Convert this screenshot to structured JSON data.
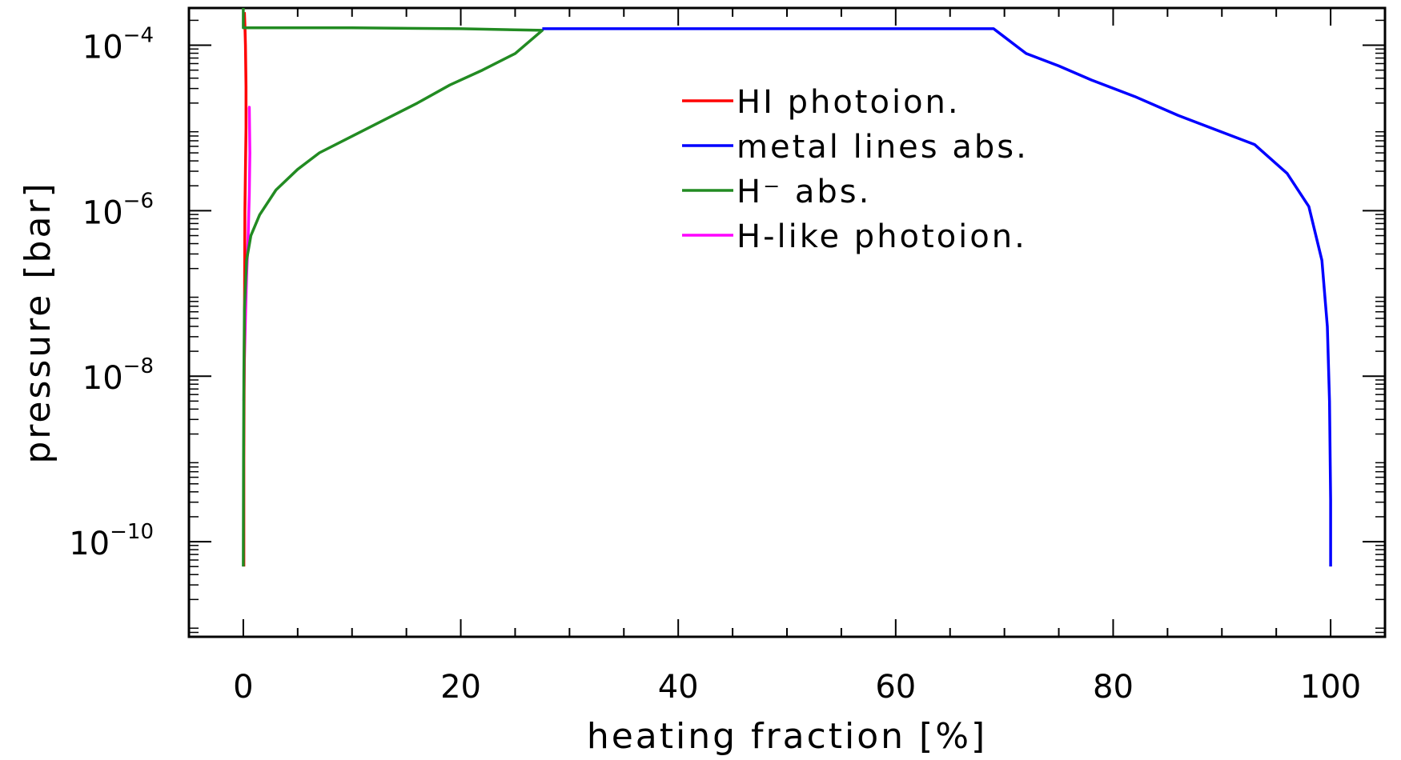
{
  "chart_data": {
    "type": "line",
    "title": "",
    "xlabel": "heating fraction [%]",
    "ylabel": "pressure [bar]",
    "xlim": [
      -5,
      105
    ],
    "ylim_log10": [
      -11.15,
      -3.55
    ],
    "y_scale": "log",
    "x_ticks": [
      {
        "value": 0,
        "label": "0"
      },
      {
        "value": 20,
        "label": "20"
      },
      {
        "value": 40,
        "label": "40"
      },
      {
        "value": 60,
        "label": "60"
      },
      {
        "value": 80,
        "label": "80"
      },
      {
        "value": 100,
        "label": "100"
      }
    ],
    "y_ticks": [
      {
        "exp": -10,
        "base": "10",
        "sup": "−10"
      },
      {
        "exp": -8,
        "base": "10",
        "sup": "−8"
      },
      {
        "exp": -6,
        "base": "10",
        "sup": "−6"
      },
      {
        "exp": -4,
        "base": "10",
        "sup": "−4"
      }
    ],
    "legend_position": "top-center",
    "series": [
      {
        "name": "HI photoion.",
        "color": "#ff0000",
        "points": [
          [
            0.05,
            -10.3
          ],
          [
            0.05,
            -9.0
          ],
          [
            0.08,
            -8.0
          ],
          [
            0.12,
            -7.0
          ],
          [
            0.15,
            -6.0
          ],
          [
            0.2,
            -5.5
          ],
          [
            0.25,
            -5.0
          ],
          [
            0.25,
            -4.5
          ],
          [
            0.2,
            -4.0
          ],
          [
            0.15,
            -3.75
          ],
          [
            0.1,
            -3.6
          ]
        ]
      },
      {
        "name": "metal lines abs.",
        "color": "#0000ff",
        "points": [
          [
            27.5,
            -3.8
          ],
          [
            40,
            -3.8
          ],
          [
            52,
            -3.8
          ],
          [
            60,
            -3.8
          ],
          [
            69,
            -3.8
          ],
          [
            70,
            -3.9
          ],
          [
            72,
            -4.1
          ],
          [
            75,
            -4.25
          ],
          [
            78,
            -4.42
          ],
          [
            82,
            -4.62
          ],
          [
            86,
            -4.85
          ],
          [
            90,
            -5.05
          ],
          [
            93,
            -5.2
          ],
          [
            96,
            -5.55
          ],
          [
            98,
            -5.95
          ],
          [
            99.2,
            -6.6
          ],
          [
            99.7,
            -7.4
          ],
          [
            99.9,
            -8.3
          ],
          [
            100,
            -9.5
          ],
          [
            100,
            -10.3
          ]
        ]
      },
      {
        "name": "H⁻ abs.",
        "color": "#228b22",
        "points": [
          [
            0,
            -10.3
          ],
          [
            0.02,
            -9.0
          ],
          [
            0.05,
            -8.0
          ],
          [
            0.1,
            -7.2
          ],
          [
            0.3,
            -6.6
          ],
          [
            0.7,
            -6.3
          ],
          [
            1.5,
            -6.05
          ],
          [
            3,
            -5.75
          ],
          [
            5,
            -5.5
          ],
          [
            7,
            -5.3
          ],
          [
            10,
            -5.1
          ],
          [
            13,
            -4.9
          ],
          [
            16,
            -4.7
          ],
          [
            19,
            -4.48
          ],
          [
            22,
            -4.3
          ],
          [
            25,
            -4.1
          ],
          [
            27.5,
            -3.82
          ],
          [
            20,
            -3.8
          ],
          [
            10,
            -3.79
          ],
          [
            3,
            -3.79
          ],
          [
            0,
            -3.79
          ],
          [
            0,
            -3.55
          ]
        ]
      },
      {
        "name": "H-like photoion.",
        "color": "#ff00ff",
        "points": [
          [
            0.05,
            -8.3
          ],
          [
            0.1,
            -7.8
          ],
          [
            0.2,
            -7.3
          ],
          [
            0.3,
            -6.8
          ],
          [
            0.45,
            -6.3
          ],
          [
            0.55,
            -5.8
          ],
          [
            0.6,
            -5.3
          ],
          [
            0.55,
            -4.75
          ],
          [
            0.45,
            -4.75
          ]
        ]
      }
    ]
  }
}
